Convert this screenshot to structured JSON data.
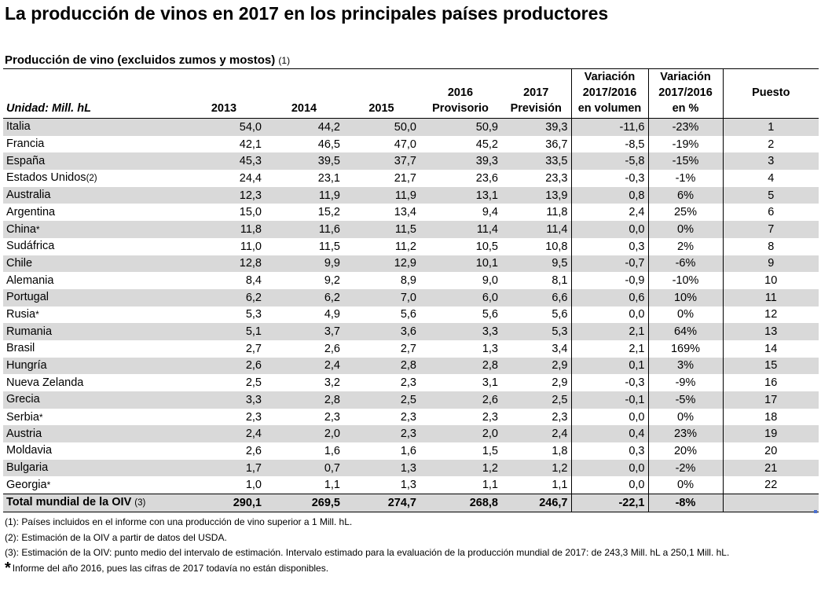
{
  "title": "La producción de vinos en 2017 en los principales países productores",
  "subtitle": {
    "text": "Producción de vino (excluidos zumos y mostos)",
    "note": "(1)"
  },
  "table": {
    "headers": {
      "unit": "Unidad: Mill. hL",
      "y2013": "2013",
      "y2014": "2014",
      "y2015": "2015",
      "y2016_a": "2016",
      "y2016_b": "Provisorio",
      "y2017_a": "2017",
      "y2017_b": "Previsión",
      "var_vol_a": "Variación",
      "var_vol_b": "2017/2016",
      "var_vol_c": "en volumen",
      "var_pct_a": "Variación",
      "var_pct_b": "2017/2016",
      "var_pct_c": "en %",
      "rank": "Puesto"
    },
    "rows": [
      {
        "country": "Italia",
        "mark": "",
        "v2013": "54,0",
        "v2014": "44,2",
        "v2015": "50,0",
        "v2016": "50,9",
        "v2017": "39,3",
        "var_vol": "-11,6",
        "var_pct": "-23%",
        "rank": "1"
      },
      {
        "country": "Francia",
        "mark": "",
        "v2013": "42,1",
        "v2014": "46,5",
        "v2015": "47,0",
        "v2016": "45,2",
        "v2017": "36,7",
        "var_vol": "-8,5",
        "var_pct": "-19%",
        "rank": "2"
      },
      {
        "country": "España",
        "mark": "",
        "v2013": "45,3",
        "v2014": "39,5",
        "v2015": "37,7",
        "v2016": "39,3",
        "v2017": "33,5",
        "var_vol": "-5,8",
        "var_pct": "-15%",
        "rank": "3"
      },
      {
        "country": "Estados Unidos",
        "mark": "(2)",
        "v2013": "24,4",
        "v2014": "23,1",
        "v2015": "21,7",
        "v2016": "23,6",
        "v2017": "23,3",
        "var_vol": "-0,3",
        "var_pct": "-1%",
        "rank": "4"
      },
      {
        "country": "Australia",
        "mark": "",
        "v2013": "12,3",
        "v2014": "11,9",
        "v2015": "11,9",
        "v2016": "13,1",
        "v2017": "13,9",
        "var_vol": "0,8",
        "var_pct": "6%",
        "rank": "5"
      },
      {
        "country": "Argentina",
        "mark": "",
        "v2013": "15,0",
        "v2014": "15,2",
        "v2015": "13,4",
        "v2016": "9,4",
        "v2017": "11,8",
        "var_vol": "2,4",
        "var_pct": "25%",
        "rank": "6"
      },
      {
        "country": "China",
        "mark": "*",
        "v2013": "11,8",
        "v2014": "11,6",
        "v2015": "11,5",
        "v2016": "11,4",
        "v2017": "11,4",
        "var_vol": "0,0",
        "var_pct": "0%",
        "rank": "7"
      },
      {
        "country": "Sudáfrica",
        "mark": "",
        "v2013": "11,0",
        "v2014": "11,5",
        "v2015": "11,2",
        "v2016": "10,5",
        "v2017": "10,8",
        "var_vol": "0,3",
        "var_pct": "2%",
        "rank": "8"
      },
      {
        "country": "Chile",
        "mark": "",
        "v2013": "12,8",
        "v2014": "9,9",
        "v2015": "12,9",
        "v2016": "10,1",
        "v2017": "9,5",
        "var_vol": "-0,7",
        "var_pct": "-6%",
        "rank": "9"
      },
      {
        "country": "Alemania",
        "mark": "",
        "v2013": "8,4",
        "v2014": "9,2",
        "v2015": "8,9",
        "v2016": "9,0",
        "v2017": "8,1",
        "var_vol": "-0,9",
        "var_pct": "-10%",
        "rank": "10"
      },
      {
        "country": "Portugal",
        "mark": "",
        "v2013": "6,2",
        "v2014": "6,2",
        "v2015": "7,0",
        "v2016": "6,0",
        "v2017": "6,6",
        "var_vol": "0,6",
        "var_pct": "10%",
        "rank": "11"
      },
      {
        "country": "Rusia",
        "mark": "*",
        "v2013": "5,3",
        "v2014": "4,9",
        "v2015": "5,6",
        "v2016": "5,6",
        "v2017": "5,6",
        "var_vol": "0,0",
        "var_pct": "0%",
        "rank": "12"
      },
      {
        "country": "Rumania",
        "mark": "",
        "v2013": "5,1",
        "v2014": "3,7",
        "v2015": "3,6",
        "v2016": "3,3",
        "v2017": "5,3",
        "var_vol": "2,1",
        "var_pct": "64%",
        "rank": "13"
      },
      {
        "country": "Brasil",
        "mark": "",
        "v2013": "2,7",
        "v2014": "2,6",
        "v2015": "2,7",
        "v2016": "1,3",
        "v2017": "3,4",
        "var_vol": "2,1",
        "var_pct": "169%",
        "rank": "14"
      },
      {
        "country": "Hungría",
        "mark": "",
        "v2013": "2,6",
        "v2014": "2,4",
        "v2015": "2,8",
        "v2016": "2,8",
        "v2017": "2,9",
        "var_vol": "0,1",
        "var_pct": "3%",
        "rank": "15"
      },
      {
        "country": "Nueva Zelanda",
        "mark": "",
        "v2013": "2,5",
        "v2014": "3,2",
        "v2015": "2,3",
        "v2016": "3,1",
        "v2017": "2,9",
        "var_vol": "-0,3",
        "var_pct": "-9%",
        "rank": "16"
      },
      {
        "country": "Grecia",
        "mark": "",
        "v2013": "3,3",
        "v2014": "2,8",
        "v2015": "2,5",
        "v2016": "2,6",
        "v2017": "2,5",
        "var_vol": "-0,1",
        "var_pct": "-5%",
        "rank": "17"
      },
      {
        "country": "Serbia",
        "mark": "*",
        "v2013": "2,3",
        "v2014": "2,3",
        "v2015": "2,3",
        "v2016": "2,3",
        "v2017": "2,3",
        "var_vol": "0,0",
        "var_pct": "0%",
        "rank": "18"
      },
      {
        "country": "Austria",
        "mark": "",
        "v2013": "2,4",
        "v2014": "2,0",
        "v2015": "2,3",
        "v2016": "2,0",
        "v2017": "2,4",
        "var_vol": "0,4",
        "var_pct": "23%",
        "rank": "19"
      },
      {
        "country": "Moldavia",
        "mark": "",
        "v2013": "2,6",
        "v2014": "1,6",
        "v2015": "1,6",
        "v2016": "1,5",
        "v2017": "1,8",
        "var_vol": "0,3",
        "var_pct": "20%",
        "rank": "20"
      },
      {
        "country": "Bulgaria",
        "mark": "",
        "v2013": "1,7",
        "v2014": "0,7",
        "v2015": "1,3",
        "v2016": "1,2",
        "v2017": "1,2",
        "var_vol": "0,0",
        "var_pct": "-2%",
        "rank": "21"
      },
      {
        "country": "Georgia",
        "mark": "*",
        "v2013": "1,0",
        "v2014": "1,1",
        "v2015": "1,3",
        "v2016": "1,1",
        "v2017": "1,1",
        "var_vol": "0,0",
        "var_pct": "0%",
        "rank": "22"
      }
    ],
    "total": {
      "label": "Total mundial de la OIV",
      "mark": "(3)",
      "v2013": "290,1",
      "v2014": "269,5",
      "v2015": "274,7",
      "v2016": "268,8",
      "v2017": "246,7",
      "var_vol": "-22,1",
      "var_pct": "-8%"
    }
  },
  "notes": {
    "n1": "(1): Países incluidos en el informe con una producción de vino superior a 1 Mill. hL.",
    "n2": "(2): Estimación de la OIV a partir de datos del USDA.",
    "n3": "(3): Estimación de la OIV: punto medio del intervalo de estimación. Intervalo estimado para la evaluación de la producción mundial de 2017: de 243,3 Mill. hL a 250,1 Mill. hL.",
    "star": "*",
    "n4": "Informe del año 2016, pues las cifras de 2017 todavía no están disponibles."
  }
}
